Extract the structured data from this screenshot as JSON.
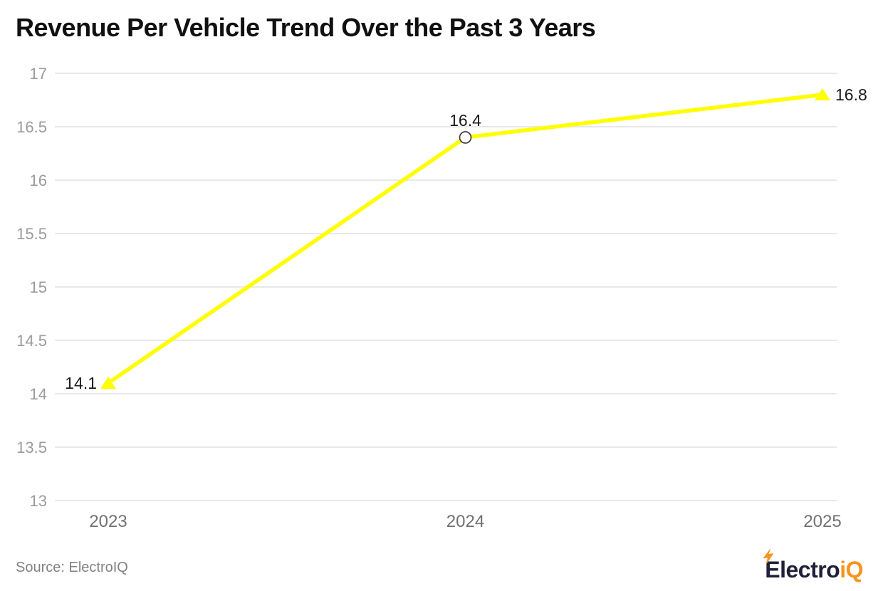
{
  "title": "Revenue Per Vehicle Trend Over the Past 3 Years",
  "source": {
    "label": "Source: ElectroIQ"
  },
  "logo": {
    "part1": "Electro",
    "part2": "iQ",
    "dark_color": "#20203a",
    "accent_color": "#f7941d",
    "bolt_icon": "lightning-bolt"
  },
  "chart_data": {
    "type": "line",
    "title": "Revenue Per Vehicle Trend Over the Past 3 Years",
    "categories": [
      "2023",
      "2024",
      "2025"
    ],
    "series": [
      {
        "name": "Revenue Per Vehicle",
        "values": [
          14.1,
          16.4,
          16.8
        ]
      }
    ],
    "data_labels": [
      "14.1",
      "16.4",
      "16.8"
    ],
    "data_label_positions": [
      "left",
      "top",
      "right"
    ],
    "marker_shapes": [
      "triangle-up",
      "circle-open",
      "triangle-up"
    ],
    "xlabel": "",
    "ylabel": "",
    "ylim": [
      13,
      17
    ],
    "yticks": [
      17,
      16.5,
      16,
      15.5,
      15,
      14.5,
      14,
      13.5,
      13
    ],
    "grid": true,
    "legend": "none",
    "colors": {
      "line": "#ffff00",
      "gridline": "#e8e8e8",
      "ytick_label": "#9b9b9b",
      "xtick_label": "#717171",
      "data_label": "#1b1b1b",
      "marker_circle_stroke": "#3d3d3d",
      "marker_circle_fill": "#ffffff"
    }
  }
}
